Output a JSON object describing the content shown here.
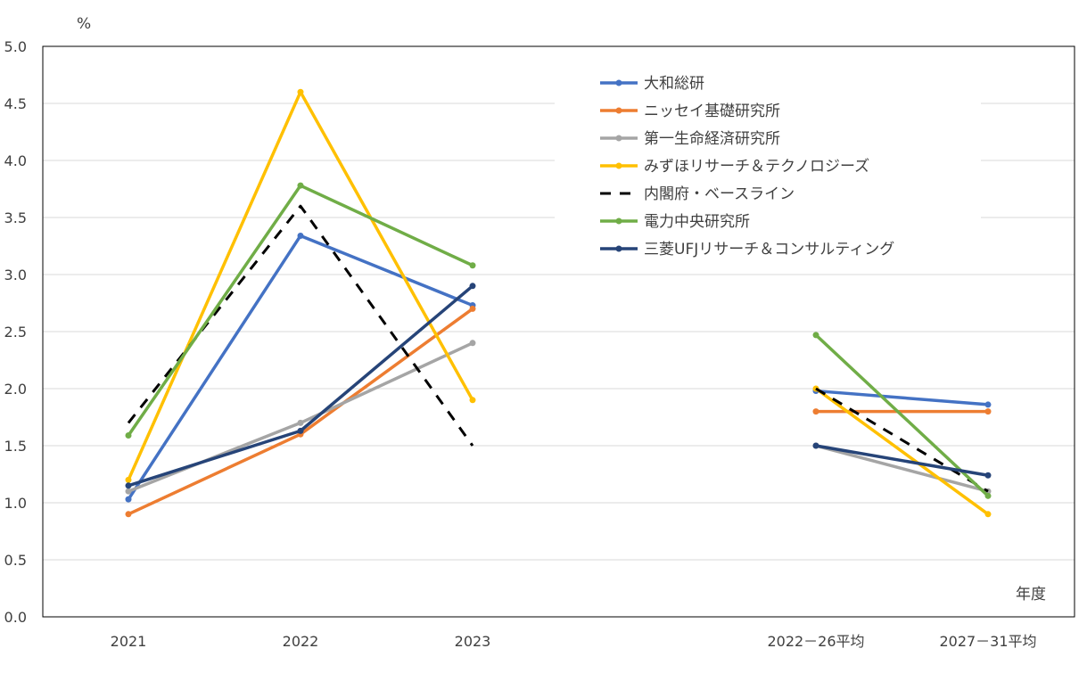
{
  "chart_data": {
    "type": "line",
    "y_unit_label": "%",
    "x_unit_label": "年度",
    "ylim": [
      0,
      5.0
    ],
    "y_ticks": [
      "0.0",
      "0.5",
      "1.0",
      "1.5",
      "2.0",
      "2.5",
      "3.0",
      "3.5",
      "4.0",
      "4.5",
      "5.0"
    ],
    "grid": true,
    "legend_position": "top-right",
    "categories": [
      "2021",
      "2022",
      "2023",
      "",
      "2022－26平均",
      "2027－31平均"
    ],
    "series": [
      {
        "name": "大和総研",
        "color": "#4472C4",
        "dashed": false,
        "values": [
          1.03,
          3.34,
          2.73,
          null,
          1.98,
          1.86
        ]
      },
      {
        "name": "ニッセイ基礎研究所",
        "color": "#ED7D31",
        "dashed": false,
        "values": [
          0.9,
          1.6,
          2.7,
          null,
          1.8,
          1.8
        ]
      },
      {
        "name": "第一生命経済研究所",
        "color": "#A5A5A5",
        "dashed": false,
        "values": [
          1.1,
          1.7,
          2.4,
          null,
          1.5,
          1.1
        ]
      },
      {
        "name": "みずほリサーチ＆テクノロジーズ",
        "color": "#FFC000",
        "dashed": false,
        "values": [
          1.2,
          4.6,
          1.9,
          null,
          2.0,
          0.9
        ]
      },
      {
        "name": "内閣府・ベースライン",
        "color": "#000000",
        "dashed": true,
        "values": [
          1.7,
          3.6,
          1.5,
          null,
          2.0,
          1.1
        ]
      },
      {
        "name": "電力中央研究所",
        "color": "#70AD47",
        "dashed": false,
        "values": [
          1.59,
          3.78,
          3.08,
          null,
          2.47,
          1.06
        ]
      },
      {
        "name": "三菱UFJリサーチ＆コンサルティング",
        "color": "#264478",
        "dashed": false,
        "values": [
          1.15,
          1.63,
          2.9,
          null,
          1.5,
          1.24
        ]
      }
    ]
  }
}
